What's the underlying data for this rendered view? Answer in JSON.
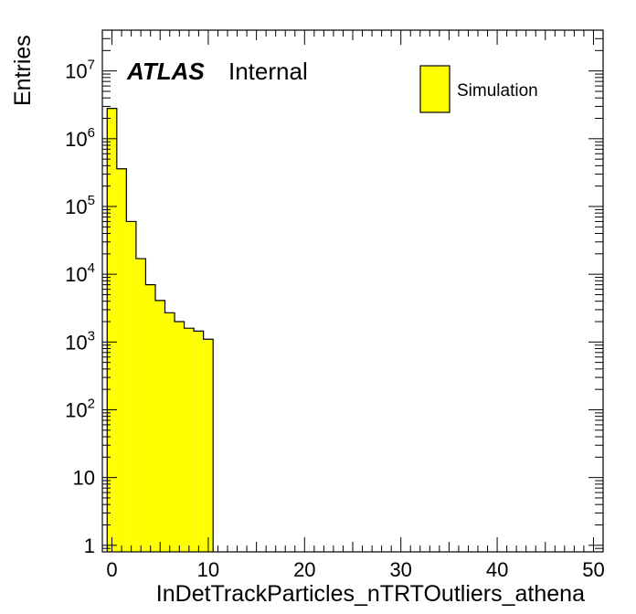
{
  "chart_data": {
    "type": "bar",
    "subtype": "histogram",
    "y_scale": "log",
    "xlabel": "InDetTrackParticles_nTRTOutliers_athena",
    "ylabel": "Entries",
    "xlim": [
      -1,
      51
    ],
    "ylim": [
      0.8,
      40000000
    ],
    "x_ticks": [
      0,
      10,
      20,
      30,
      40,
      50
    ],
    "y_ticks": [
      {
        "value": 1,
        "base": "1",
        "exp": ""
      },
      {
        "value": 10,
        "base": "10",
        "exp": ""
      },
      {
        "value": 100,
        "base": "10",
        "exp": "2"
      },
      {
        "value": 1000,
        "base": "10",
        "exp": "3"
      },
      {
        "value": 10000,
        "base": "10",
        "exp": "4"
      },
      {
        "value": 100000,
        "base": "10",
        "exp": "5"
      },
      {
        "value": 1000000,
        "base": "10",
        "exp": "6"
      },
      {
        "value": 10000000,
        "base": "10",
        "exp": "7"
      }
    ],
    "bin_width": 1,
    "bin_low_edges": [
      -0.5,
      0.5,
      1.5,
      2.5,
      3.5,
      4.5,
      5.5,
      6.5,
      7.5,
      8.5,
      9.5
    ],
    "values": [
      2800000,
      360000,
      60000,
      17000,
      7000,
      4100,
      2700,
      2000,
      1600,
      1450,
      1100
    ],
    "fill_color": "#ffff00",
    "line_color": "#000000",
    "legend": {
      "entries": [
        "Simulation"
      ],
      "position": "top-right"
    },
    "grid": false
  },
  "label": {
    "experiment": "ATLAS",
    "status": "Internal"
  }
}
